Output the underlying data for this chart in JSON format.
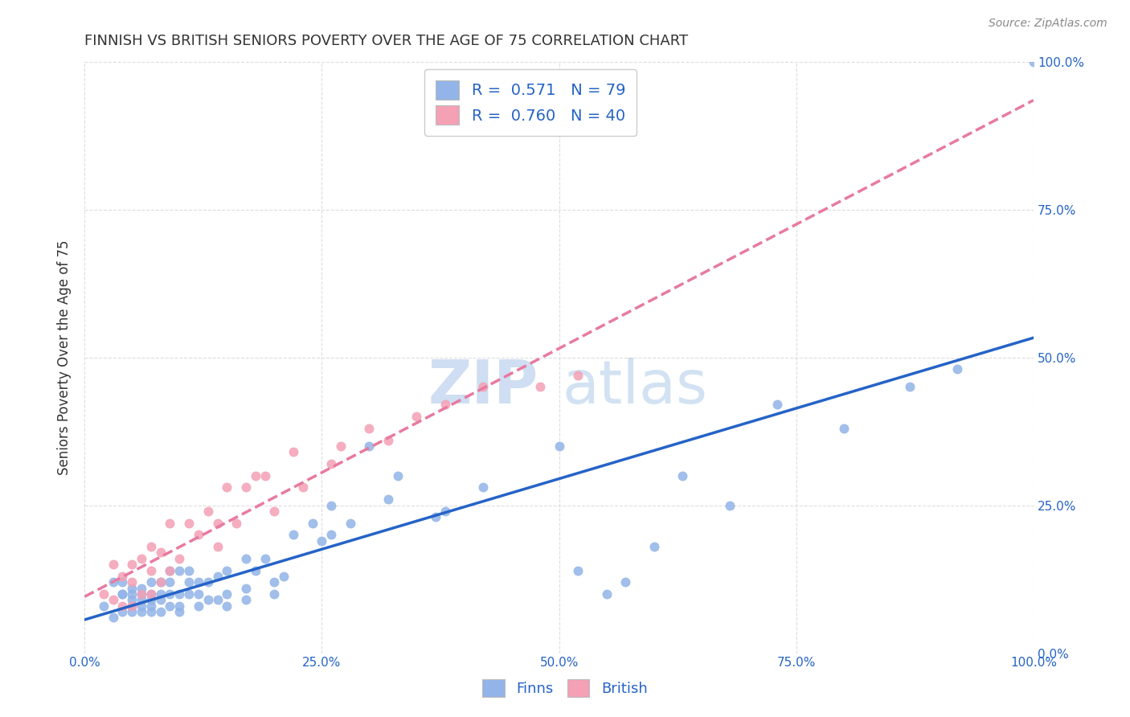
{
  "title": "FINNISH VS BRITISH SENIORS POVERTY OVER THE AGE OF 75 CORRELATION CHART",
  "source": "Source: ZipAtlas.com",
  "ylabel": "Seniors Poverty Over the Age of 75",
  "xlabel": "",
  "finn_R": 0.571,
  "finn_N": 79,
  "brit_R": 0.76,
  "brit_N": 40,
  "finn_color": "#92b4e8",
  "brit_color": "#f4a0b5",
  "finn_line_color": "#2563c7",
  "brit_line_color": "#e87aa0",
  "title_color": "#333333",
  "axis_label_color": "#2563c7",
  "legend_text_color": "#2563c7",
  "watermark_zip": "ZIP",
  "watermark_atlas": "atlas",
  "background_color": "#ffffff",
  "grid_color": "#dddddd",
  "finn_scatter_x": [
    0.02,
    0.03,
    0.03,
    0.04,
    0.04,
    0.04,
    0.04,
    0.05,
    0.05,
    0.05,
    0.05,
    0.05,
    0.06,
    0.06,
    0.06,
    0.06,
    0.06,
    0.07,
    0.07,
    0.07,
    0.07,
    0.07,
    0.08,
    0.08,
    0.08,
    0.08,
    0.09,
    0.09,
    0.09,
    0.09,
    0.1,
    0.1,
    0.1,
    0.1,
    0.11,
    0.11,
    0.11,
    0.12,
    0.12,
    0.12,
    0.13,
    0.13,
    0.14,
    0.14,
    0.15,
    0.15,
    0.15,
    0.17,
    0.17,
    0.17,
    0.18,
    0.19,
    0.2,
    0.2,
    0.21,
    0.22,
    0.24,
    0.25,
    0.26,
    0.26,
    0.28,
    0.3,
    0.32,
    0.33,
    0.37,
    0.38,
    0.42,
    0.5,
    0.52,
    0.55,
    0.57,
    0.6,
    0.63,
    0.68,
    0.73,
    0.8,
    0.87,
    0.92,
    1.0
  ],
  "finn_scatter_y": [
    0.08,
    0.12,
    0.06,
    0.1,
    0.07,
    0.1,
    0.12,
    0.07,
    0.08,
    0.09,
    0.1,
    0.11,
    0.07,
    0.08,
    0.09,
    0.1,
    0.11,
    0.07,
    0.08,
    0.09,
    0.1,
    0.12,
    0.07,
    0.09,
    0.1,
    0.12,
    0.08,
    0.1,
    0.12,
    0.14,
    0.07,
    0.08,
    0.1,
    0.14,
    0.1,
    0.12,
    0.14,
    0.08,
    0.1,
    0.12,
    0.09,
    0.12,
    0.09,
    0.13,
    0.08,
    0.1,
    0.14,
    0.09,
    0.11,
    0.16,
    0.14,
    0.16,
    0.1,
    0.12,
    0.13,
    0.2,
    0.22,
    0.19,
    0.2,
    0.25,
    0.22,
    0.35,
    0.26,
    0.3,
    0.23,
    0.24,
    0.28,
    0.35,
    0.14,
    0.1,
    0.12,
    0.18,
    0.3,
    0.25,
    0.42,
    0.38,
    0.45,
    0.48,
    1.0
  ],
  "brit_scatter_x": [
    0.02,
    0.03,
    0.03,
    0.04,
    0.04,
    0.05,
    0.05,
    0.05,
    0.06,
    0.06,
    0.07,
    0.07,
    0.07,
    0.08,
    0.08,
    0.09,
    0.09,
    0.1,
    0.11,
    0.12,
    0.13,
    0.14,
    0.14,
    0.15,
    0.16,
    0.17,
    0.18,
    0.19,
    0.2,
    0.22,
    0.23,
    0.26,
    0.27,
    0.3,
    0.32,
    0.35,
    0.38,
    0.42,
    0.48,
    0.52
  ],
  "brit_scatter_y": [
    0.1,
    0.09,
    0.15,
    0.08,
    0.13,
    0.08,
    0.12,
    0.15,
    0.1,
    0.16,
    0.1,
    0.14,
    0.18,
    0.12,
    0.17,
    0.14,
    0.22,
    0.16,
    0.22,
    0.2,
    0.24,
    0.18,
    0.22,
    0.28,
    0.22,
    0.28,
    0.3,
    0.3,
    0.24,
    0.34,
    0.28,
    0.32,
    0.35,
    0.38,
    0.36,
    0.4,
    0.42,
    0.45,
    0.45,
    0.47
  ],
  "xlim": [
    0.0,
    1.0
  ],
  "ylim": [
    0.0,
    1.0
  ],
  "xtick_labels": [
    "0.0%",
    "25.0%",
    "50.0%",
    "75.0%",
    "100.0%"
  ],
  "xtick_vals": [
    0.0,
    0.25,
    0.5,
    0.75,
    1.0
  ],
  "ytick_vals": [
    0.0,
    0.25,
    0.5,
    0.75,
    1.0
  ],
  "finn_legend_label": "Finns",
  "brit_legend_label": "British"
}
